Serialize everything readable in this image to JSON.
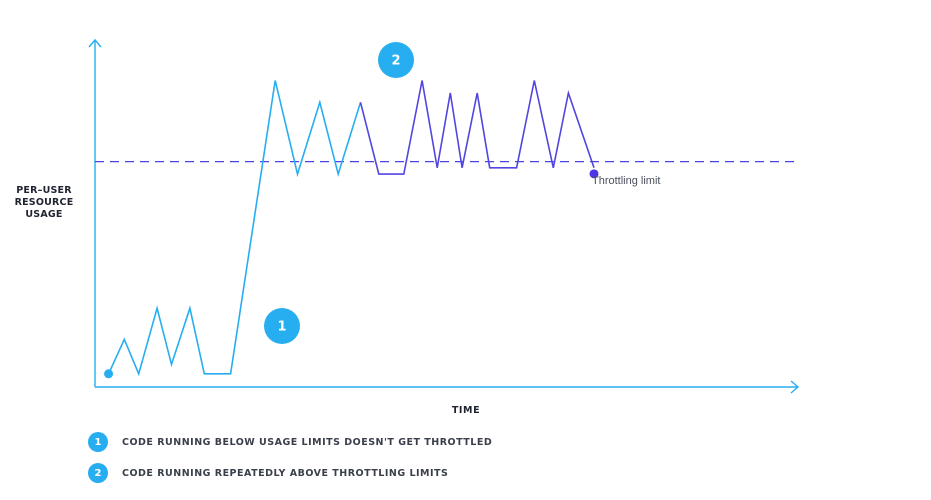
{
  "chart_data": {
    "type": "line",
    "ylabel_lines": [
      "PER–USER",
      "RESOURCE",
      "USAGE"
    ],
    "xlabel": "TIME",
    "threshold": {
      "label": "Throttling limit",
      "value": 70
    },
    "ylim": [
      0,
      100
    ],
    "xlim": [
      0,
      100
    ],
    "series": [
      {
        "segment": "below",
        "color": "#27aef0",
        "points": [
          [
            1,
            2
          ],
          [
            3.4,
            13
          ],
          [
            5.6,
            2
          ],
          [
            8.4,
            23
          ],
          [
            10.6,
            5
          ],
          [
            13.4,
            23
          ],
          [
            15.6,
            2
          ],
          [
            19.6,
            2
          ],
          [
            26.4,
            96
          ],
          [
            29.8,
            66
          ],
          [
            33.2,
            89
          ],
          [
            36,
            66
          ],
          [
            39.4,
            89
          ]
        ]
      },
      {
        "segment": "above",
        "color": "#5246e0",
        "points": [
          [
            39.4,
            89
          ],
          [
            42.2,
            66
          ],
          [
            46,
            66
          ],
          [
            48.8,
            96
          ],
          [
            51.1,
            68
          ],
          [
            53.1,
            92
          ],
          [
            54.9,
            68
          ],
          [
            57.2,
            92
          ],
          [
            59.1,
            68
          ],
          [
            63.2,
            68
          ],
          [
            65.9,
            96
          ],
          [
            68.8,
            68
          ],
          [
            71.1,
            92
          ],
          [
            75,
            68
          ]
        ]
      }
    ],
    "start_marker_color": "#27aef0",
    "end_marker_color": "#4e36e8",
    "threshold_color": "#4a44e6",
    "axis_color": "#27aef0",
    "badges": [
      {
        "number": "1",
        "color": "#27aef0"
      },
      {
        "number": "2",
        "color": "#27aef0"
      }
    ]
  },
  "legend": [
    {
      "number": "1",
      "text": "CODE RUNNING BELOW USAGE LIMITS DOESN'T GET THROTTLED",
      "color": "#27aef0"
    },
    {
      "number": "2",
      "text": "CODE RUNNING REPEATEDLY ABOVE THROTTLING LIMITS",
      "color": "#27aef0"
    }
  ]
}
